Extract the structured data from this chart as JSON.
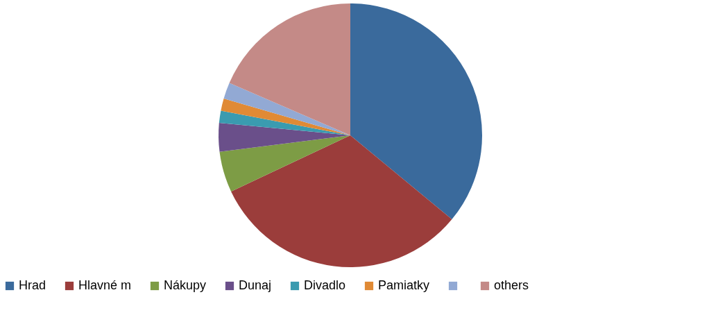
{
  "chart_data": {
    "type": "pie",
    "categories": [
      "Hrad",
      "Hlavné m",
      "Nákupy",
      "Dunaj",
      "Divadlo",
      "Pamiatky",
      null,
      "others"
    ],
    "values": [
      36,
      32,
      5,
      3.5,
      1.5,
      1.5,
      2,
      18.5
    ],
    "colors": [
      "#3a6a9c",
      "#9b3d3b",
      "#7d9c45",
      "#6a4f8a",
      "#3a9bb0",
      "#e08a35",
      "#92a9d4",
      "#c48a87"
    ],
    "legend": "bottom"
  }
}
